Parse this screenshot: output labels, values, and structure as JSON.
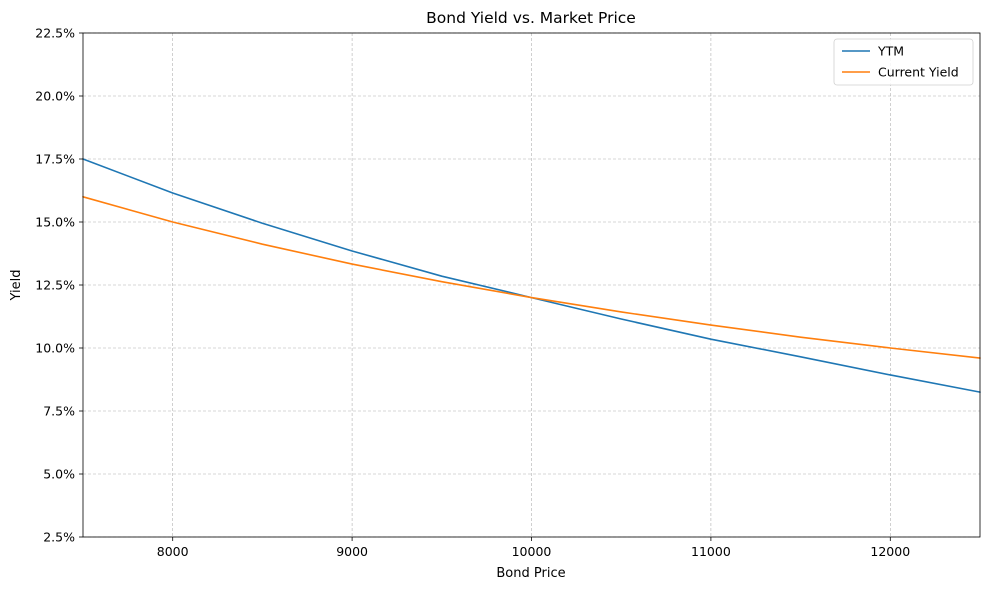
{
  "chart_data": {
    "type": "line",
    "title": "Bond Yield vs. Market Price",
    "xlabel": "Bond Price",
    "ylabel": "Yield",
    "xlim": [
      7500,
      12500
    ],
    "ylim": [
      0.025,
      0.225
    ],
    "xticks": [
      8000,
      9000,
      10000,
      11000,
      12000
    ],
    "xtick_labels": [
      "8000",
      "9000",
      "10000",
      "11000",
      "12000"
    ],
    "yticks": [
      0.025,
      0.05,
      0.075,
      0.1,
      0.125,
      0.15,
      0.175,
      0.2,
      0.225
    ],
    "ytick_labels": [
      "2.5%",
      "5.0%",
      "7.5%",
      "10.0%",
      "12.5%",
      "15.0%",
      "17.5%",
      "20.0%",
      "22.5%"
    ],
    "grid": true,
    "legend_position": "top-right",
    "series": [
      {
        "name": "YTM",
        "color": "#1f77b4",
        "x": [
          7500,
          8000,
          8500,
          9000,
          9500,
          10000,
          10500,
          11000,
          11500,
          12000,
          12500
        ],
        "y": [
          0.175,
          0.1615,
          0.1495,
          0.1385,
          0.1285,
          0.12,
          0.1115,
          0.1035,
          0.0965,
          0.0893,
          0.0825
        ]
      },
      {
        "name": "Current Yield",
        "color": "#ff7f0e",
        "x": [
          7500,
          8000,
          8500,
          9000,
          9500,
          10000,
          10500,
          11000,
          11500,
          12000,
          12500
        ],
        "y": [
          0.16,
          0.15,
          0.1412,
          0.1333,
          0.1263,
          0.12,
          0.1143,
          0.1091,
          0.1043,
          0.1,
          0.096
        ]
      }
    ]
  }
}
